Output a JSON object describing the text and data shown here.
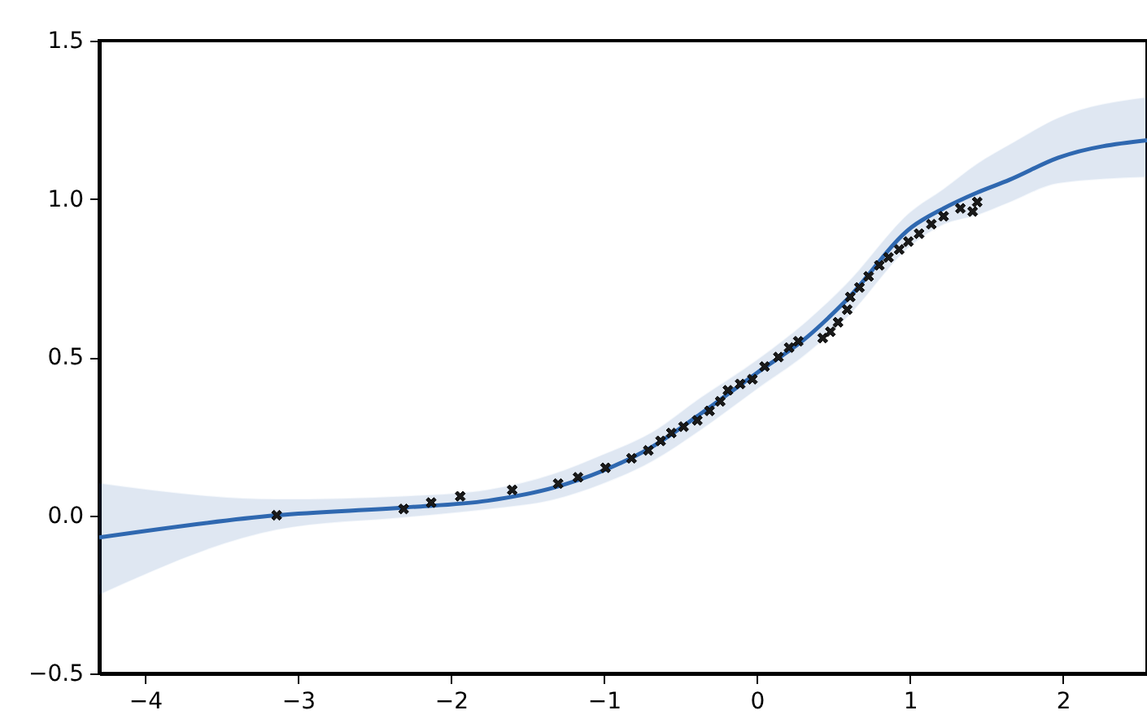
{
  "chart_data": {
    "type": "line",
    "xlim": [
      -4.3,
      2.55
    ],
    "ylim": [
      -0.5,
      1.5
    ],
    "xticks": [
      {
        "value": -4,
        "label": "−4"
      },
      {
        "value": -3,
        "label": "−3"
      },
      {
        "value": -2,
        "label": "−2"
      },
      {
        "value": -1,
        "label": "−1"
      },
      0,
      1,
      2
    ],
    "yticks": [
      {
        "value": -0.5,
        "label": "−0.5"
      },
      {
        "value": 0,
        "label": "0.0"
      },
      {
        "value": 0.5,
        "label": "0.5"
      },
      {
        "value": 1,
        "label": "1.0"
      },
      {
        "value": 1.5,
        "label": "1.5"
      }
    ],
    "grid": false,
    "series": [
      {
        "color": "#2f68b0",
        "x": [
          -4.3,
          -3.14,
          -2.29,
          -1.76,
          -1.33,
          -1.01,
          -0.69,
          -0.37,
          0,
          0.32,
          0.585,
          1.01,
          1.22,
          1.44,
          1.65,
          1.97,
          2.55
        ],
        "values": [
          -0.07,
          0.0,
          0.025,
          0.046,
          0.087,
          0.14,
          0.215,
          0.32,
          0.45,
          0.56,
          0.68,
          0.91,
          0.97,
          1.02,
          1.06,
          1.13,
          1.185
        ],
        "lower": [
          -0.25,
          -0.045,
          -0.005,
          0.02,
          0.05,
          0.1,
          0.17,
          0.27,
          0.4,
          0.51,
          0.625,
          0.855,
          0.92,
          0.95,
          0.99,
          1.05,
          1.07
        ],
        "upper": [
          0.1,
          0.05,
          0.06,
          0.08,
          0.13,
          0.19,
          0.26,
          0.37,
          0.49,
          0.61,
          0.73,
          0.96,
          1.03,
          1.11,
          1.17,
          1.255,
          1.32
        ]
      },
      {
        "type": "scatter",
        "color": "#1a1a1a",
        "marker": "cross",
        "x": [
          -3.14,
          -2.31,
          -2.13,
          -1.94,
          -1.6,
          -1.3,
          -1.17,
          -0.99,
          -0.82,
          -0.71,
          -0.63,
          -0.56,
          -0.48,
          -0.39,
          -0.31,
          -0.24,
          -0.19,
          -0.11,
          -0.03,
          0.05,
          0.14,
          0.21,
          0.27,
          0.43,
          0.48,
          0.53,
          0.59,
          0.61,
          0.67,
          0.73,
          0.8,
          0.86,
          0.93,
          0.99,
          1.06,
          1.14,
          1.22,
          1.33,
          1.44,
          1.41
        ],
        "values": [
          0.0,
          0.02,
          0.04,
          0.06,
          0.08,
          0.1,
          0.12,
          0.15,
          0.18,
          0.205,
          0.235,
          0.26,
          0.28,
          0.3,
          0.33,
          0.36,
          0.395,
          0.415,
          0.43,
          0.47,
          0.5,
          0.53,
          0.55,
          0.56,
          0.58,
          0.61,
          0.65,
          0.69,
          0.72,
          0.755,
          0.79,
          0.815,
          0.84,
          0.865,
          0.89,
          0.92,
          0.945,
          0.97,
          0.99,
          0.96
        ]
      }
    ]
  }
}
